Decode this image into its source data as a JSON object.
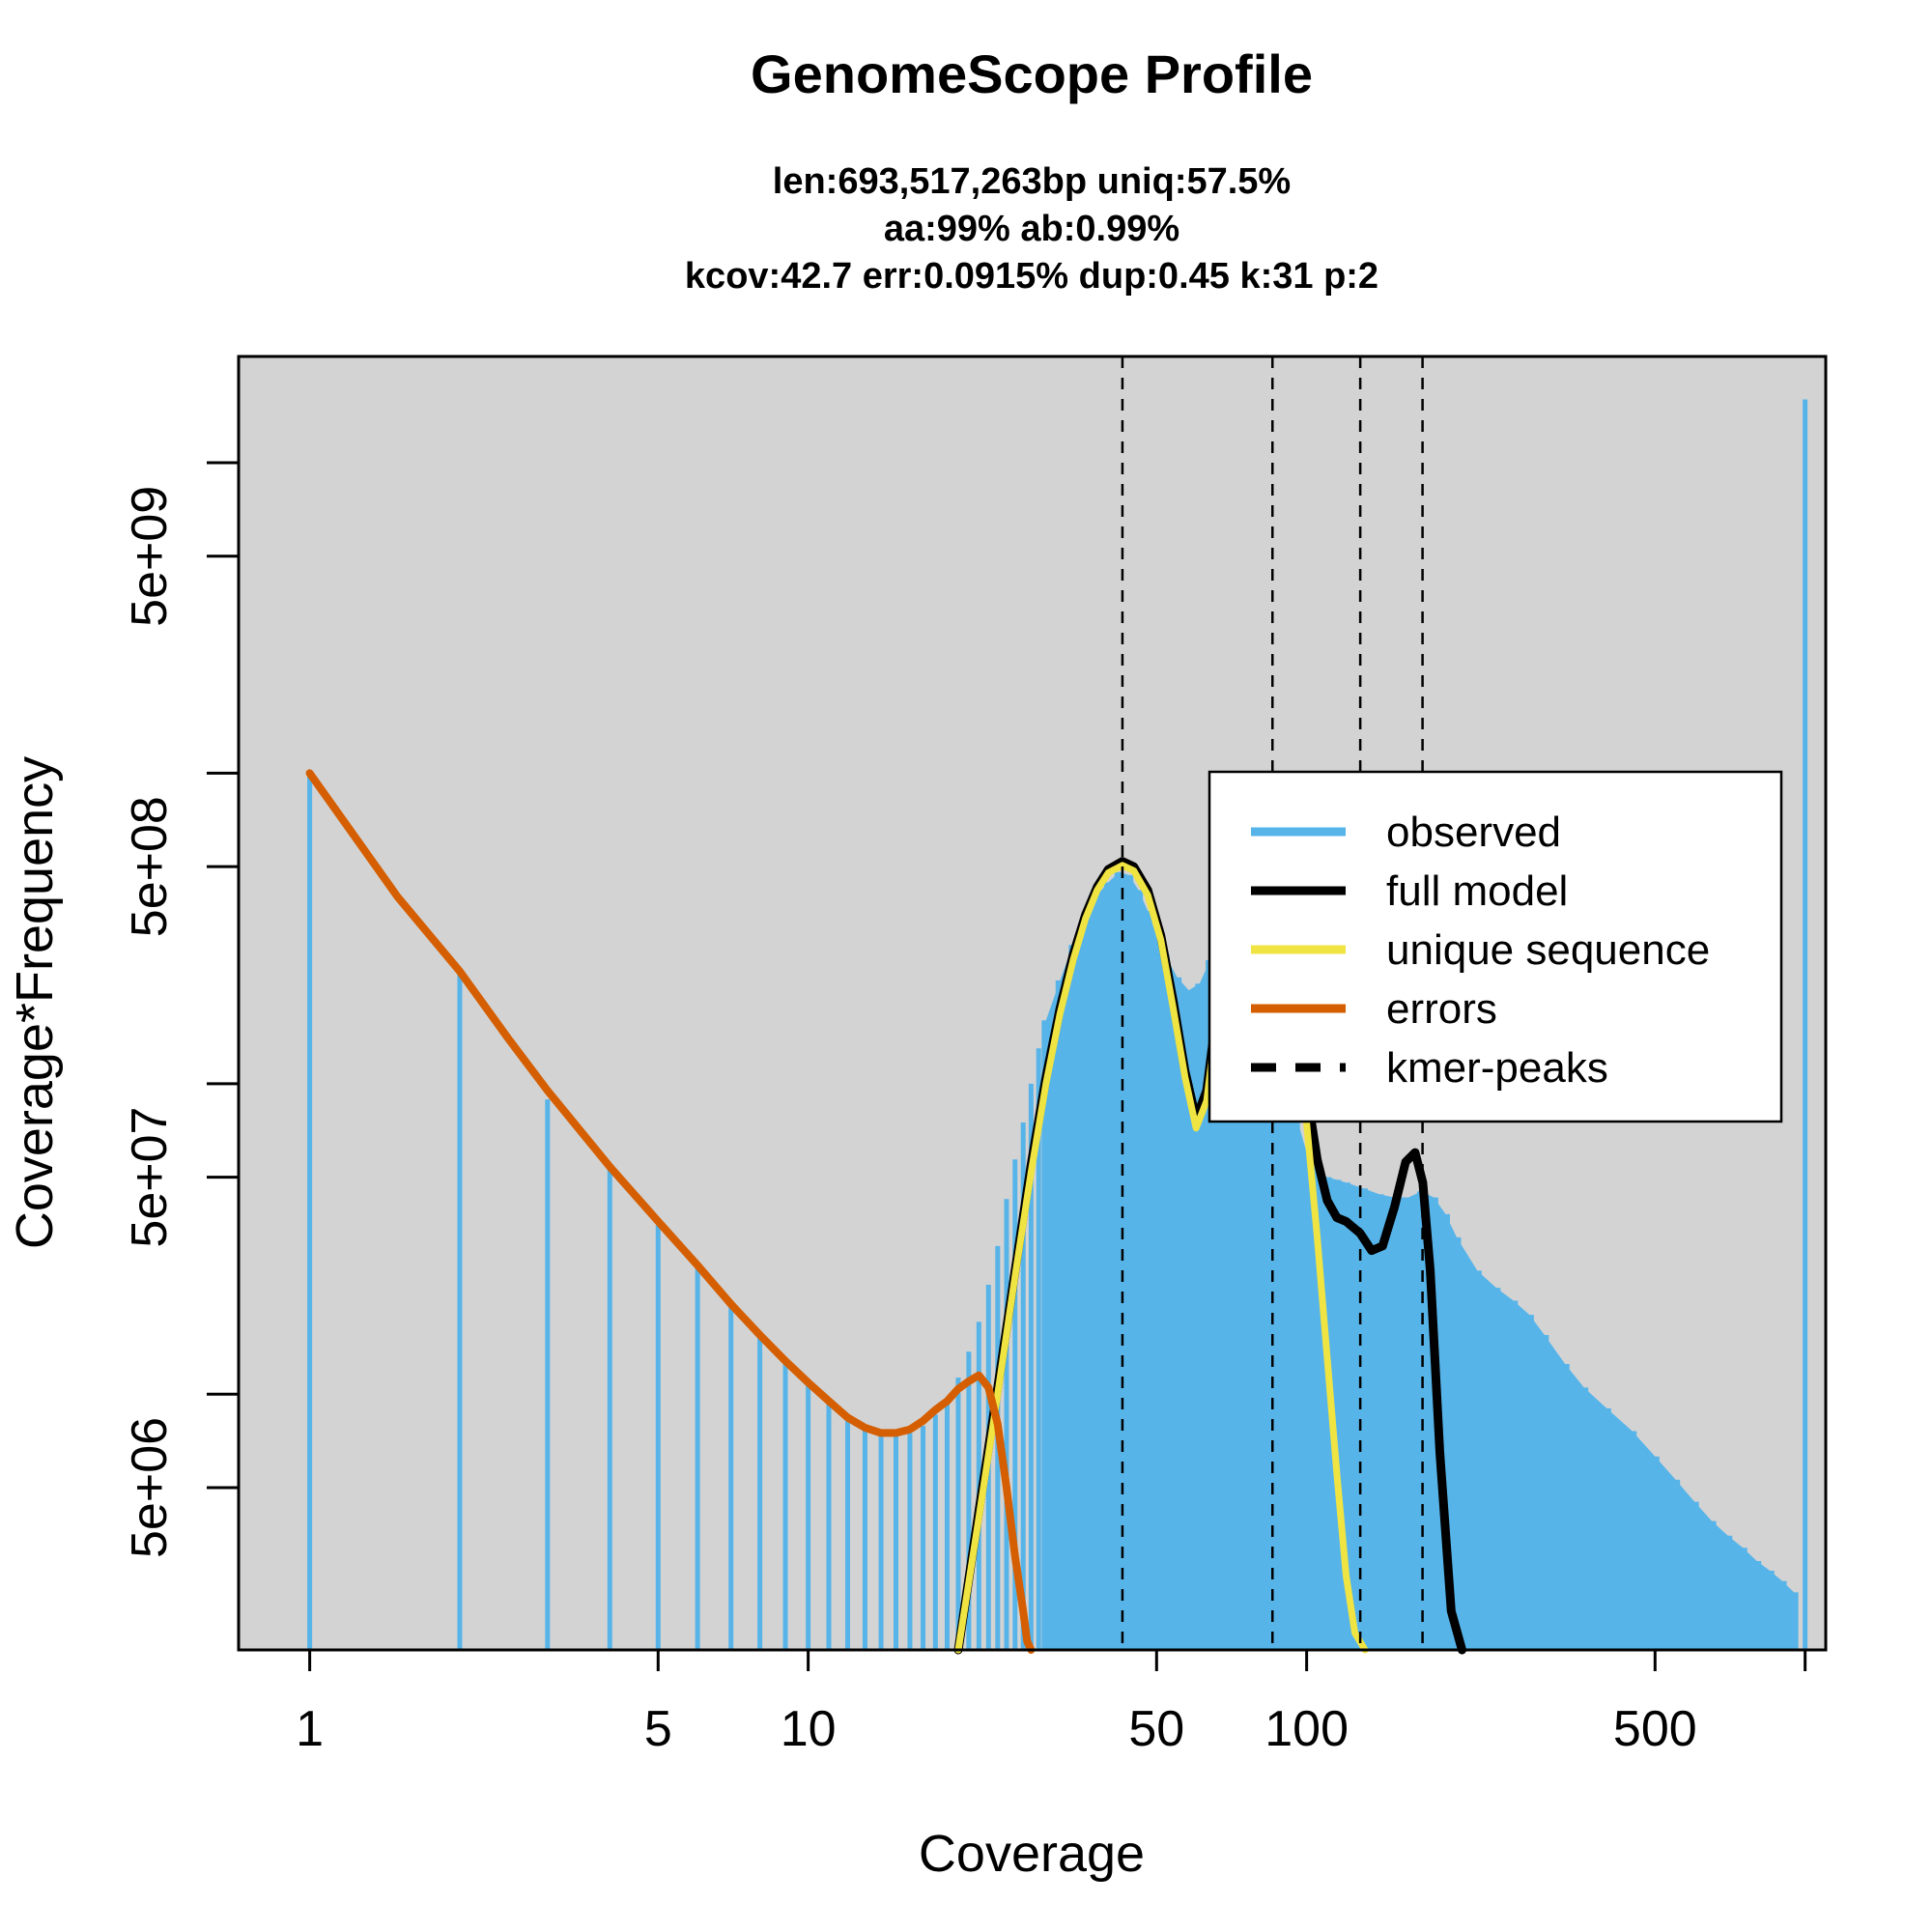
{
  "chart_data": {
    "type": "line",
    "title": "GenomeScope Profile",
    "subtitle_lines": [
      "len:693,517,263bp uniq:57.5%",
      "aa:99% ab:0.99%",
      "kcov:42.7 err:0.0915%  dup:0.45  k:31 p:2"
    ],
    "xlabel": "Coverage",
    "ylabel": "Coverage*Frequency",
    "x_scale": "log",
    "y_scale": "log",
    "xlim": [
      0.72,
      1100
    ],
    "ylim": [
      1500000,
      22000000000
    ],
    "x_ticks": [
      1,
      5,
      10,
      50,
      100,
      500,
      1000
    ],
    "x_tick_labels": [
      "1",
      "5",
      "10",
      "50",
      "100",
      "500",
      ""
    ],
    "y_ticks": [
      5000000,
      10000000,
      50000000,
      100000000,
      500000000,
      1000000000,
      5000000000,
      10000000000
    ],
    "y_tick_labels": [
      "5e+06",
      "",
      "5e+07",
      "",
      "5e+08",
      "",
      "5e+09",
      ""
    ],
    "background": "#d3d3d3",
    "grid": false,
    "legend_position": "top-right",
    "legend": [
      {
        "label": "observed",
        "color": "#56b4e9",
        "style": "solid"
      },
      {
        "label": "full model",
        "color": "#000000",
        "style": "solid"
      },
      {
        "label": "unique sequence",
        "color": "#f0e442",
        "style": "solid"
      },
      {
        "label": "errors",
        "color": "#d55e00",
        "style": "solid"
      },
      {
        "label": "kmer-peaks",
        "color": "#000000",
        "style": "dashed"
      }
    ],
    "kmer_peaks": [
      42.7,
      85.4,
      128.1,
      170.8
    ],
    "observed": {
      "name": "observed",
      "color": "#56b4e9",
      "x": [
        1,
        2,
        3,
        4,
        5,
        6,
        7,
        8,
        9,
        10,
        11,
        12,
        13,
        14,
        15,
        16,
        17,
        18,
        19,
        20,
        21,
        22,
        23,
        24,
        25,
        26,
        27,
        28,
        29,
        30,
        32,
        34,
        36,
        38,
        40,
        42,
        44,
        46,
        48,
        50,
        52,
        55,
        58,
        61,
        64,
        67,
        70,
        73,
        76,
        80,
        85,
        90,
        95,
        100,
        105,
        110,
        115,
        120,
        130,
        140,
        150,
        160,
        170,
        180,
        190,
        200,
        220,
        240,
        260,
        280,
        300,
        330,
        360,
        400,
        450,
        500,
        550,
        600,
        650,
        700,
        750,
        800,
        850,
        900,
        950,
        1000
      ],
      "y": [
        1000000000,
        224000000,
        89000000,
        53000000,
        35000000,
        26000000,
        19800000,
        15600000,
        13000000,
        10900000,
        9400000,
        8400000,
        7800000,
        7500000,
        7400000,
        7500000,
        7900000,
        8600000,
        9700000,
        11300000,
        13700000,
        17100000,
        22500000,
        30000000,
        42500000,
        57000000,
        75000000,
        100000000,
        130000000,
        160000000,
        215000000,
        280000000,
        350000000,
        405000000,
        445000000,
        480000000,
        470000000,
        420000000,
        360000000,
        300000000,
        260000000,
        220000000,
        200000000,
        210000000,
        250000000,
        310000000,
        370000000,
        400000000,
        380000000,
        300000000,
        190000000,
        120000000,
        80000000,
        60000000,
        52000000,
        50000000,
        49000000,
        48000000,
        46000000,
        44000000,
        43000000,
        43000000,
        45000000,
        43000000,
        38000000,
        32000000,
        25000000,
        22000000,
        20000000,
        18000000,
        15500000,
        12500000,
        10500000,
        9000000,
        7600000,
        6300000,
        5300000,
        4500000,
        3900000,
        3500000,
        3200000,
        2900000,
        2700000,
        2500000,
        2300000,
        16000000000
      ]
    },
    "full_model": {
      "name": "full model",
      "color": "#000000",
      "x": [
        20,
        22,
        24,
        26,
        28,
        30,
        32,
        34,
        36,
        38,
        40,
        42.7,
        45,
        48,
        51,
        54,
        57,
        60,
        63,
        66,
        70,
        74,
        78,
        82,
        86,
        90,
        95,
        100,
        105,
        110,
        115,
        120,
        128,
        135,
        142,
        150,
        158,
        165,
        171,
        177,
        185,
        195,
        205
      ],
      "y": [
        1500000,
        4200000,
        10500000,
        25000000,
        55000000,
        105000000,
        175000000,
        260000000,
        350000000,
        430000000,
        490000000,
        520000000,
        500000000,
        420000000,
        300000000,
        185000000,
        110000000,
        77000000,
        95000000,
        170000000,
        320000000,
        480000000,
        560000000,
        540000000,
        450000000,
        320000000,
        180000000,
        95000000,
        57000000,
        42000000,
        37000000,
        36000000,
        33000000,
        29000000,
        30000000,
        40000000,
        56000000,
        60000000,
        48000000,
        25000000,
        6500000,
        2000000,
        1500000
      ]
    },
    "unique_sequence": {
      "name": "unique sequence",
      "color": "#f0e442",
      "x": [
        20,
        22,
        24,
        26,
        28,
        30,
        32,
        34,
        36,
        38,
        40,
        42.7,
        45,
        48,
        51,
        54,
        57,
        60,
        63,
        66,
        70,
        74,
        78,
        82,
        86,
        90,
        95,
        100,
        105,
        110,
        115,
        120,
        125,
        131
      ],
      "y": [
        1500000,
        4000000,
        10000000,
        24000000,
        52000000,
        100000000,
        168000000,
        250000000,
        340000000,
        420000000,
        478000000,
        505000000,
        485000000,
        405000000,
        290000000,
        175000000,
        105000000,
        72000000,
        88000000,
        160000000,
        305000000,
        460000000,
        540000000,
        520000000,
        430000000,
        300000000,
        160000000,
        75000000,
        32000000,
        13000000,
        5500000,
        2600000,
        1700000,
        1500000
      ]
    },
    "errors": {
      "name": "errors",
      "color": "#d55e00",
      "x": [
        1,
        1.5,
        2,
        2.5,
        3,
        4,
        5,
        6,
        7,
        8,
        9,
        10,
        11,
        12,
        13,
        14,
        15,
        16,
        17,
        18,
        19,
        20,
        21,
        22,
        23,
        24,
        25,
        26,
        27,
        27.5,
        28
      ],
      "y": [
        1000000000,
        400000000,
        230000000,
        140000000,
        95000000,
        54000000,
        36000000,
        26000000,
        19500000,
        15500000,
        12800000,
        10900000,
        9500000,
        8400000,
        7800000,
        7500000,
        7500000,
        7700000,
        8200000,
        8900000,
        9500000,
        10400000,
        11000000,
        11500000,
        10500000,
        8000000,
        5000000,
        3000000,
        2000000,
        1600000,
        1500000
      ]
    }
  }
}
